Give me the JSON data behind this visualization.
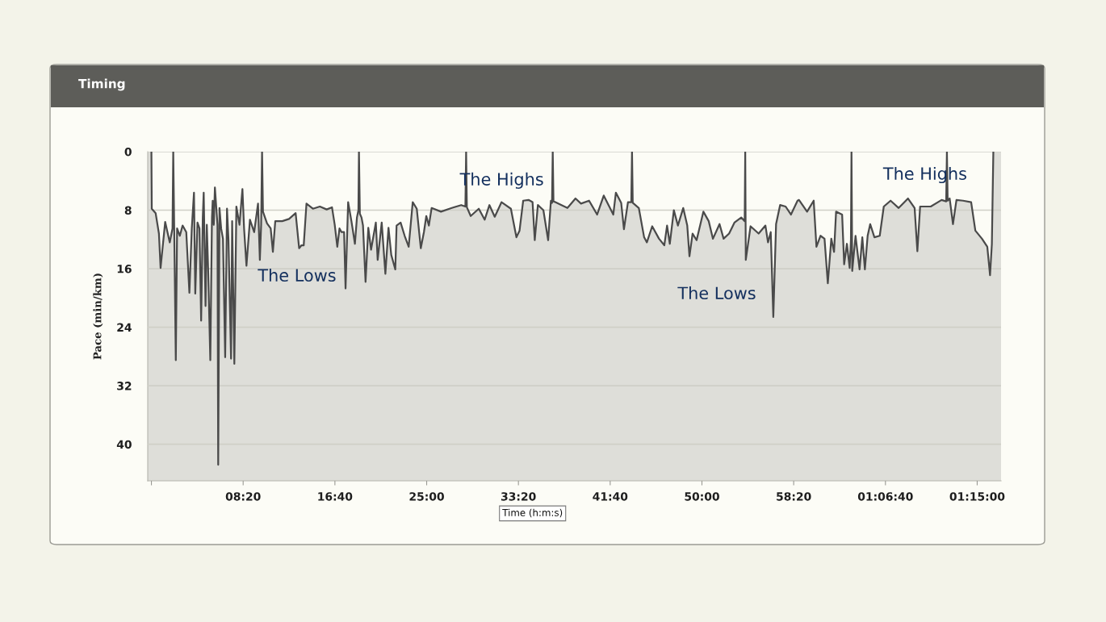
{
  "chart_data": {
    "type": "area",
    "title": "Timing",
    "xlabel": "Time (h:m:s)",
    "ylabel": "Pace (min/km)",
    "x": [
      0,
      2,
      23,
      41,
      50,
      75,
      100,
      115,
      119,
      124,
      133,
      140,
      155,
      170,
      190,
      207,
      220,
      232,
      239,
      251,
      262,
      271,
      280,
      285,
      295,
      302,
      309,
      321,
      330,
      334,
      340,
      346,
      360,
      364,
      371,
      380,
      390,
      402,
      412,
      420,
      434,
      440,
      452,
      463,
      480,
      496,
      505,
      518,
      537,
      560,
      581,
      591,
      598,
      603,
      608,
      630,
      650,
      662,
      675,
      713,
      750,
      786,
      805,
      818,
      830,
      845,
      880,
      918,
      955,
      984,
      999,
      1013,
      1025,
      1036,
      1050,
      1058,
      1072,
      1090,
      1109,
      1120,
      1128,
      1131,
      1136,
      1145,
      1153,
      1167,
      1182,
      1197,
      1223,
      1233,
      1255,
      1275,
      1292,
      1307,
      1329,
      1336,
      1358,
      1380,
      1402,
      1424,
      1446,
      1468,
      1485,
      1498,
      1512,
      1527,
      1578,
      1637,
      1688,
      1711,
      1715,
      1719,
      1740,
      1784,
      1816,
      1842,
      1871,
      1908,
      1959,
      1989,
      2006,
      2026,
      2055,
      2077,
      2089,
      2106,
      2136,
      2162,
      2177,
      2183,
      2187,
      2191,
      2201,
      2267,
      2311,
      2341,
      2385,
      2429,
      2465,
      2517,
      2531,
      2560,
      2575,
      2597,
      2615,
      2619,
      2623,
      2656,
      2685,
      2700,
      2729,
      2766,
      2795,
      2810,
      2825,
      2847,
      2869,
      2898,
      2920,
      2932,
      2949,
      2971,
      3008,
      3037,
      3060,
      3096,
      3118,
      3148,
      3177,
      3214,
      3233,
      3236,
      3239,
      3265,
      3309,
      3346,
      3360,
      3375,
      3389,
      3404,
      3426,
      3456,
      3485,
      3521,
      3529,
      3573,
      3609,
      3624,
      3646,
      3668,
      3686,
      3705,
      3720,
      3731,
      3764,
      3775,
      3790,
      3805,
      3812,
      3815,
      3819,
      3837,
      3859,
      3874,
      3888,
      3903,
      3917,
      3940,
      3969,
      3991,
      4028,
      4072,
      4123,
      4159,
      4174,
      4189,
      4247,
      4306,
      4331,
      4335,
      4339,
      4350,
      4368,
      4387,
      4423,
      4467,
      4490,
      4526,
      4555,
      4570,
      4580,
      4588
    ],
    "series": [
      {
        "color": "#4a4a4a",
        "values": [
          0,
          7.8,
          8.4,
          11.2,
          15.9,
          9.6,
          12.4,
          10.5,
          0,
          10.0,
          28.5,
          10.5,
          11.5,
          10.1,
          11.0,
          19.3,
          10.5,
          5.6,
          19.4,
          9.7,
          10.5,
          23.1,
          9.0,
          5.6,
          21.1,
          10.0,
          15.9,
          28.5,
          9.0,
          6.7,
          10.0,
          4.9,
          10.0,
          42.8,
          7.7,
          10.5,
          11.9,
          28.1,
          7.8,
          12.0,
          28.3,
          9.5,
          29.0,
          7.5,
          10.0,
          5.1,
          10.5,
          15.6,
          9.3,
          11.0,
          7.1,
          14.8,
          10.0,
          0,
          8.2,
          9.8,
          10.5,
          13.7,
          9.5,
          9.5,
          9.2,
          8.4,
          13.2,
          12.8,
          12.8,
          7.1,
          7.8,
          7.5,
          7.9,
          7.6,
          10.0,
          13.0,
          10.5,
          11.0,
          11.0,
          18.7,
          6.9,
          9.5,
          12.6,
          9.0,
          8.0,
          0,
          8.5,
          9.0,
          10.1,
          17.8,
          10.4,
          13.4,
          9.7,
          14.8,
          9.7,
          16.7,
          10.4,
          14.1,
          16.1,
          10.1,
          9.7,
          11.5,
          13.0,
          6.9,
          7.8,
          13.2,
          11.0,
          8.8,
          10.1,
          7.7,
          8.2,
          7.7,
          7.3,
          7.5,
          0,
          7.6,
          8.8,
          7.8,
          9.3,
          7.3,
          8.9,
          6.9,
          7.8,
          11.7,
          10.8,
          6.7,
          6.6,
          6.9,
          12.1,
          7.3,
          8.0,
          12.1,
          6.7,
          7.0,
          0,
          6.8,
          6.9,
          7.7,
          6.4,
          7.1,
          6.7,
          8.6,
          6.0,
          8.6,
          5.6,
          7.0,
          10.6,
          6.9,
          6.9,
          0,
          7.0,
          7.7,
          11.7,
          12.4,
          10.2,
          11.9,
          12.8,
          10.1,
          12.6,
          8.0,
          10.1,
          7.7,
          10.1,
          14.3,
          11.2,
          12.1,
          8.2,
          9.5,
          11.9,
          9.9,
          11.9,
          11.2,
          9.7,
          9.0,
          9.5,
          0,
          14.8,
          10.2,
          11.2,
          10.1,
          12.4,
          11.0,
          22.6,
          9.9,
          7.3,
          7.5,
          8.6,
          6.7,
          6.6,
          8.2,
          6.7,
          13.0,
          11.5,
          11.9,
          18.0,
          11.9,
          13.7,
          8.2,
          8.6,
          15.4,
          12.6,
          15.9,
          12.0,
          0,
          16.3,
          11.5,
          16.1,
          11.7,
          16.1,
          11.5,
          9.9,
          11.7,
          11.5,
          7.5,
          6.7,
          7.7,
          6.4,
          7.7,
          13.6,
          7.5,
          7.5,
          6.6,
          6.8,
          0,
          6.7,
          6.4,
          9.9,
          6.6,
          6.7,
          6.9,
          10.8,
          11.9,
          13.0,
          16.9,
          12.6,
          0
        ]
      }
    ],
    "xlim": [
      -20,
      4630
    ],
    "xticks": [
      {
        "value": 0,
        "label": null
      },
      {
        "value": 500,
        "label": "08:20"
      },
      {
        "value": 1000,
        "label": "16:40"
      },
      {
        "value": 1500,
        "label": "25:00"
      },
      {
        "value": 2000,
        "label": "33:20"
      },
      {
        "value": 2500,
        "label": "41:40"
      },
      {
        "value": 3000,
        "label": "50:00"
      },
      {
        "value": 3500,
        "label": "58:20"
      },
      {
        "value": 4000,
        "label": "01:06:40"
      },
      {
        "value": 4500,
        "label": "01:15:00"
      }
    ],
    "ylim": [
      45,
      0
    ],
    "yticks": [
      0,
      8,
      16,
      24,
      32,
      40
    ],
    "grid": "y",
    "annotations": [
      "The Highs",
      "The Highs",
      "The Lows",
      "The Lows"
    ]
  }
}
